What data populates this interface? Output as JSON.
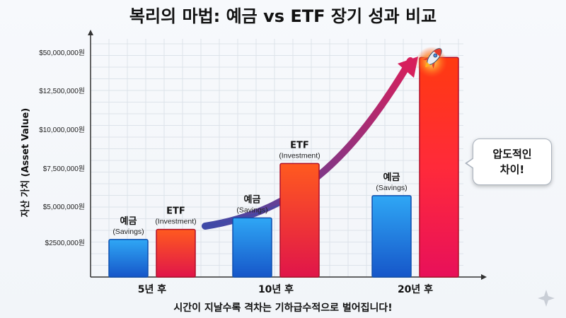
{
  "title": "복리의 마법: 예금 vs ETF 장기 성과 비교",
  "footer": "시간이 지날수록 격차는 기하급수적으로 벌어집니다!",
  "callout": {
    "line1": "압도적인",
    "line2": "차이!"
  },
  "icons": {
    "rocket": "rocket-icon"
  },
  "colors": {
    "savings": "#1e7fe0",
    "etf": "#f03a2a",
    "arrow_start": "#3f4aa8",
    "arrow_end": "#d61f5c"
  },
  "chart_data": {
    "type": "bar",
    "title": "복리의 마법: 예금 vs ETF 장기 성과 비교",
    "ylabel": "자산 가치 (Asset Value)",
    "xlabel": "",
    "yticks": [
      "$50,000,000원",
      "$12,500,000원",
      "$10,000,000원",
      "$7,500,000원",
      "$5,000,000원",
      "$2500,000원"
    ],
    "categories": [
      "5년 후",
      "10년 후",
      "20년 후"
    ],
    "series": [
      {
        "name": "예금",
        "subname": "(Savings)",
        "values": [
          2700000,
          4200000,
          5700000
        ]
      },
      {
        "name": "ETF",
        "subname": "(Investment)",
        "values": [
          3400000,
          7800000,
          45000000
        ]
      }
    ],
    "grid": true,
    "labels_shown": [
      {
        "category": 0,
        "series": [
          0,
          1
        ]
      },
      {
        "category": 1,
        "series": [
          0,
          1
        ]
      },
      {
        "category": 2,
        "series": [
          0
        ]
      }
    ]
  }
}
